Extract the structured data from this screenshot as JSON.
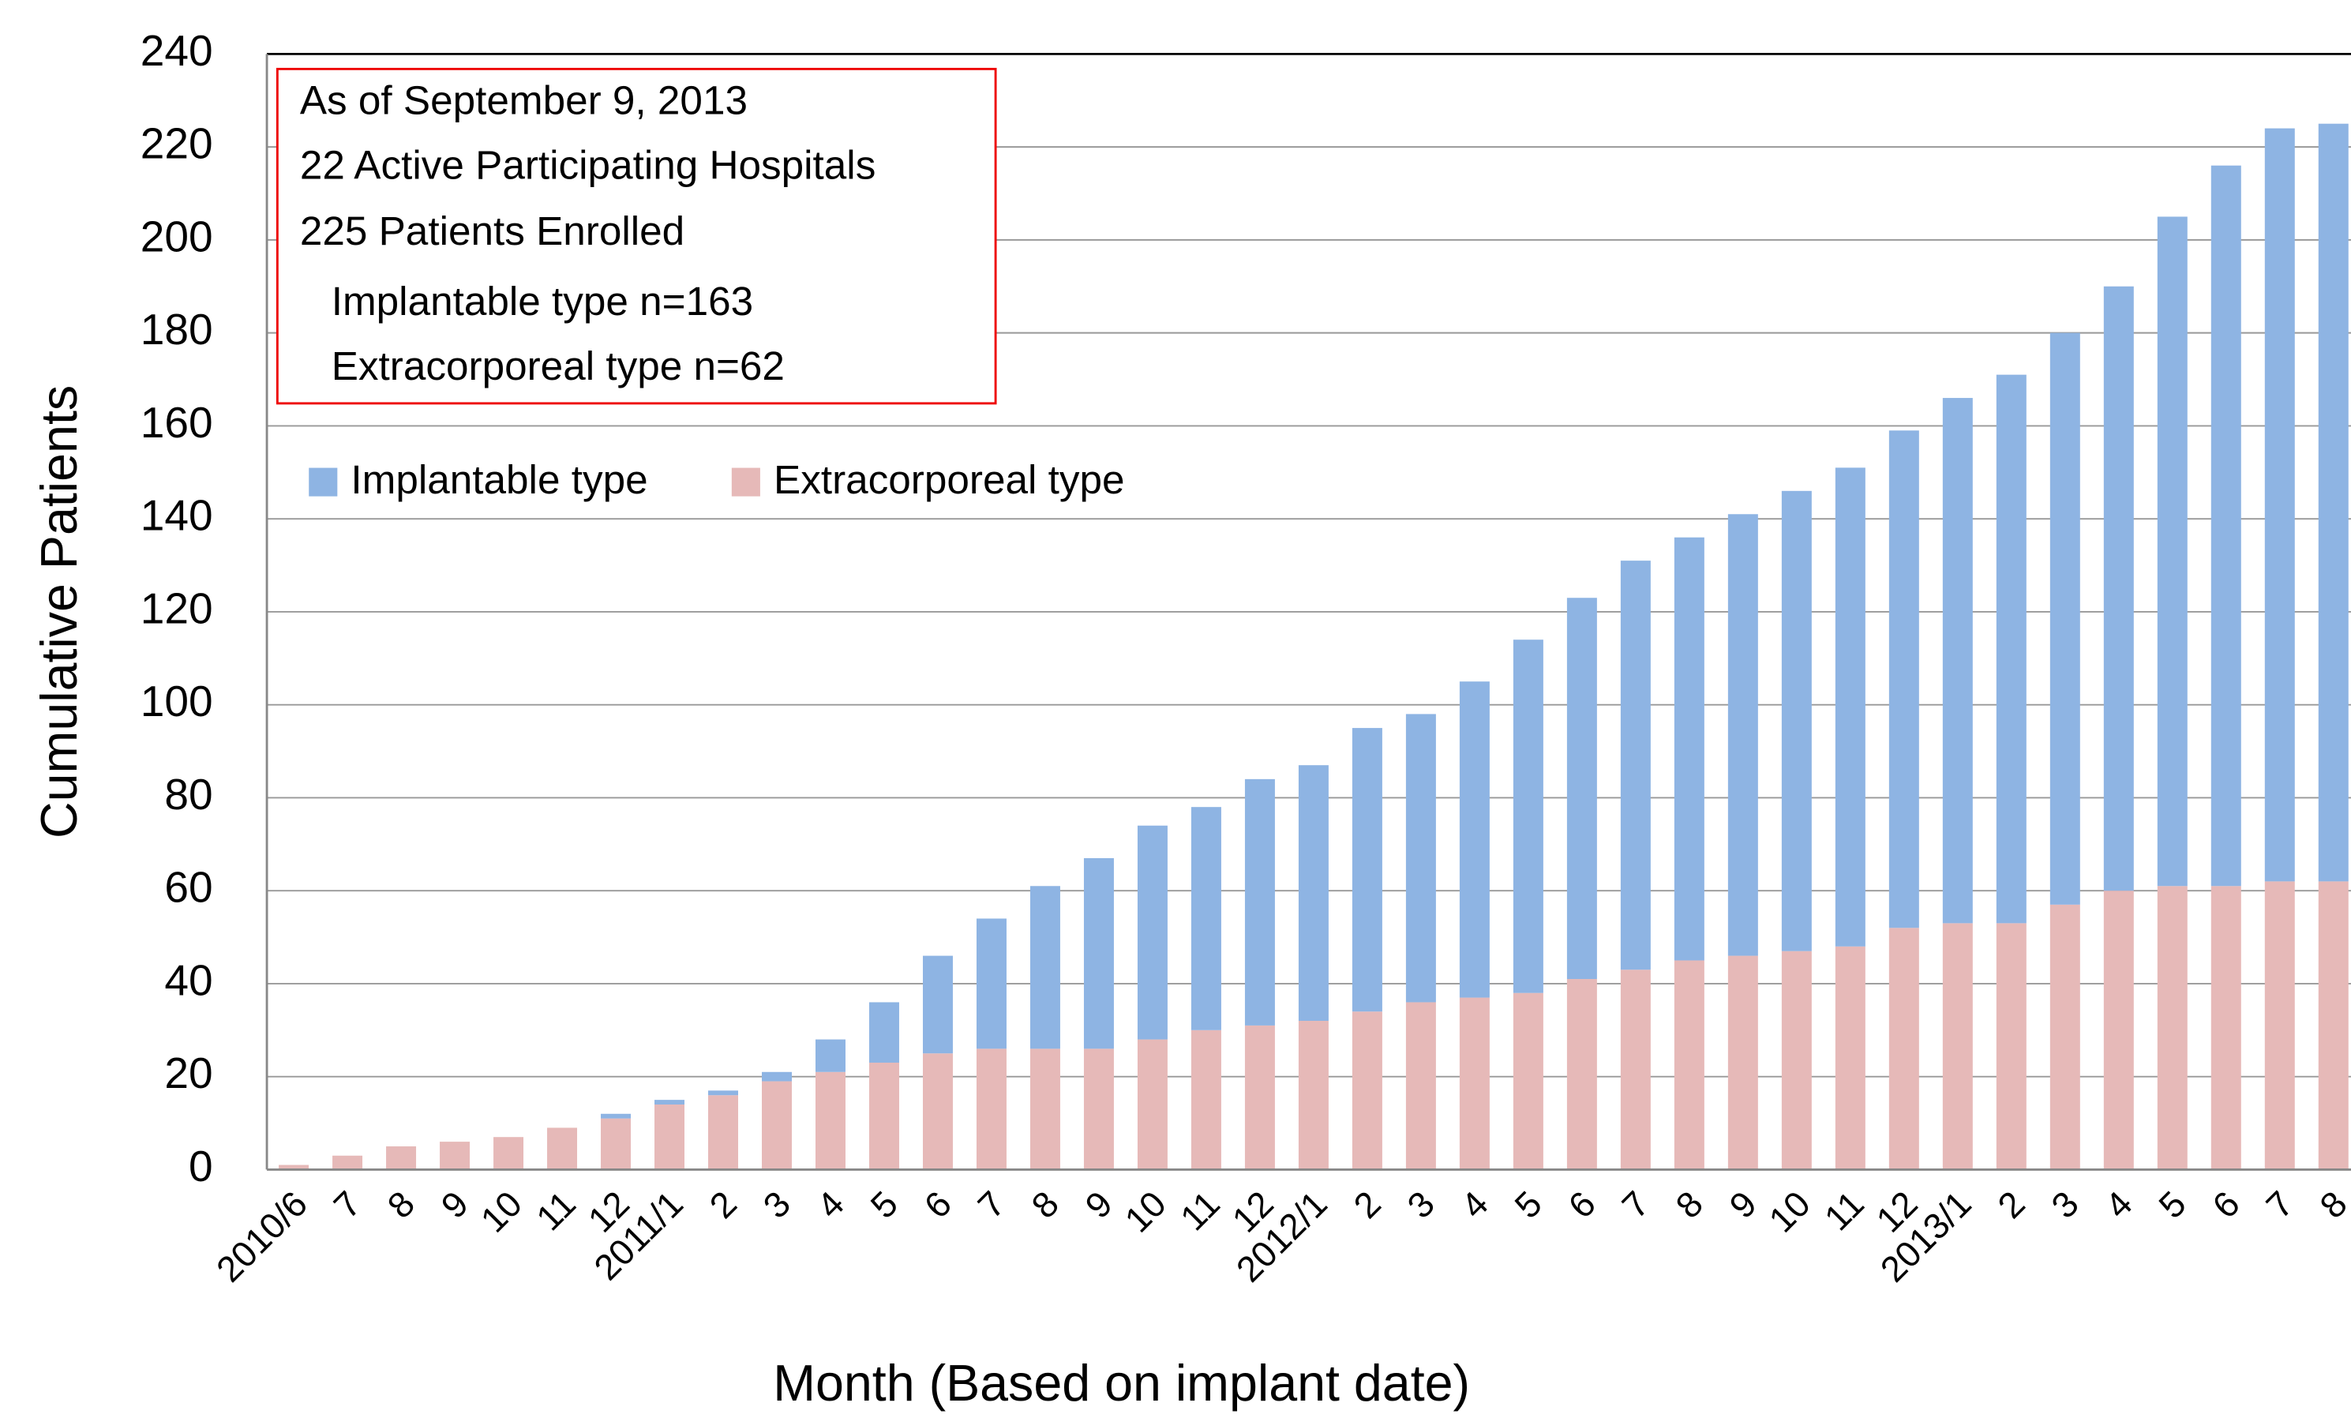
{
  "chart_data": {
    "type": "stacked-bar",
    "y_label": "Cumulative Patients",
    "x_label": "Month (Based on implant date)",
    "annotations": [
      "As of September 9, 2013",
      "22 Active Participating Hospitals",
      "225 Patients Enrolled",
      "Implantable type n=163",
      "Extracorporeal type n=62"
    ],
    "categories": [
      "2010/6",
      "7",
      "8",
      "9",
      "10",
      "11",
      "12",
      "2011/1",
      "2",
      "3",
      "4",
      "5",
      "6",
      "7",
      "8",
      "9",
      "10",
      "11",
      "12",
      "2012/1",
      "2",
      "3",
      "4",
      "5",
      "6",
      "7",
      "8",
      "9",
      "10",
      "11",
      "12",
      "2013/1",
      "2",
      "3",
      "4",
      "5",
      "6",
      "7",
      "8"
    ],
    "series": [
      {
        "name": "Extracorporeal type",
        "color": "#e6b9b8",
        "values": [
          1,
          3,
          5,
          6,
          7,
          9,
          11,
          14,
          16,
          19,
          21,
          23,
          25,
          26,
          26,
          26,
          28,
          30,
          31,
          32,
          34,
          36,
          37,
          38,
          41,
          43,
          45,
          46,
          47,
          48,
          52,
          53,
          53,
          57,
          60,
          61,
          61,
          62,
          62
        ]
      },
      {
        "name": "Implantable type",
        "color": "#8eb4e3",
        "values": [
          0,
          0,
          0,
          0,
          0,
          0,
          1,
          1,
          1,
          2,
          7,
          13,
          21,
          28,
          35,
          41,
          46,
          48,
          53,
          55,
          61,
          62,
          68,
          76,
          82,
          88,
          91,
          95,
          99,
          103,
          107,
          113,
          118,
          123,
          130,
          144,
          155,
          162,
          163
        ]
      }
    ],
    "legend_order": [
      1,
      0
    ],
    "ylim": [
      0,
      240
    ],
    "yticks": [
      0,
      20,
      40,
      60,
      80,
      100,
      120,
      140,
      160,
      180,
      200,
      220,
      240
    ],
    "grid": true
  }
}
